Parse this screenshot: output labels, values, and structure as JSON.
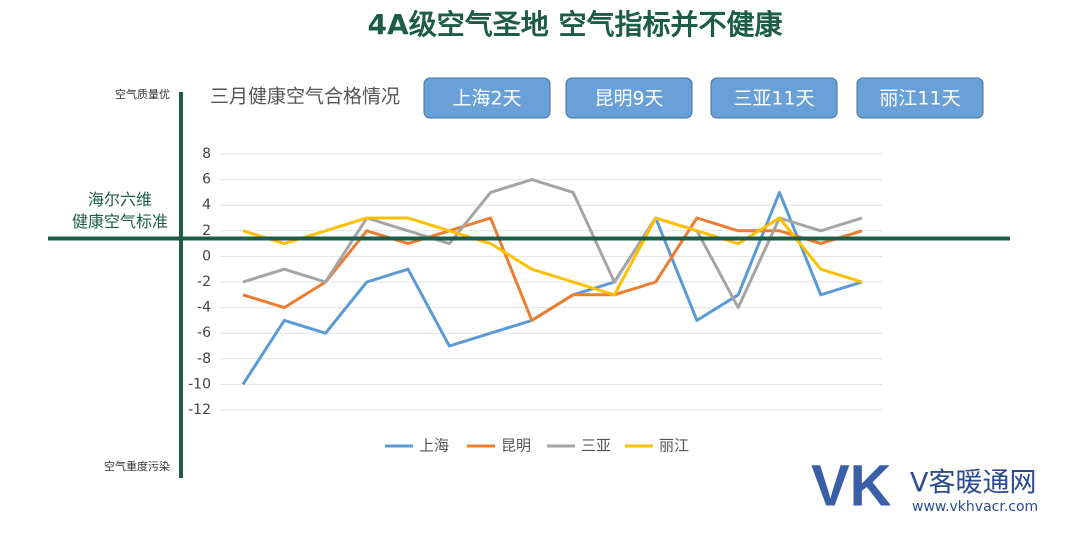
{
  "chart_data": {
    "type": "line",
    "title": "4A级空气圣地 空气指标并不健康",
    "subtitle": "三月健康空气合格情况",
    "badges": [
      "上海2天",
      "昆明9天",
      "三亚11天",
      "丽江11天"
    ],
    "axis_top": "空气质量优",
    "axis_bottom": "空气重度污染",
    "reference_line": {
      "label_lines": [
        "海尔六维",
        "健康空气标准"
      ],
      "value": 1.4
    },
    "categories": [
      null,
      null,
      null,
      null,
      null,
      null,
      null,
      null,
      null,
      null,
      null,
      null,
      null,
      null,
      null,
      null
    ],
    "ylim": [
      -12,
      8
    ],
    "yticks": [
      -12,
      -10,
      -8,
      -6,
      -4,
      -2,
      0,
      2,
      4,
      6,
      8
    ],
    "grid": true,
    "legend": "bottom",
    "series": [
      {
        "name": "上海",
        "color": "#5b9bd5",
        "values": [
          -10,
          -5,
          -6,
          -2,
          -1,
          -7,
          -6,
          -5,
          -3,
          -2,
          3,
          -5,
          -3,
          5,
          -3,
          -2
        ]
      },
      {
        "name": "昆明",
        "color": "#ed7d31",
        "values": [
          -3,
          -4,
          -2,
          2,
          1,
          2,
          3,
          -5,
          -3,
          -3,
          -2,
          3,
          2,
          2,
          1,
          2
        ]
      },
      {
        "name": "三亚",
        "color": "#a5a5a5",
        "values": [
          -2,
          -1,
          -2,
          3,
          2,
          1,
          5,
          6,
          5,
          -2,
          3,
          2,
          -4,
          3,
          2,
          3
        ]
      },
      {
        "name": "丽江",
        "color": "#ffc000",
        "values": [
          2,
          1,
          2,
          3,
          3,
          2,
          1,
          -1,
          -2,
          -3,
          3,
          2,
          1,
          3,
          -1,
          -2
        ]
      }
    ]
  },
  "watermark": {
    "logo": "VK",
    "name": "V客暖通网",
    "url": "www.vkhvacr.com"
  }
}
